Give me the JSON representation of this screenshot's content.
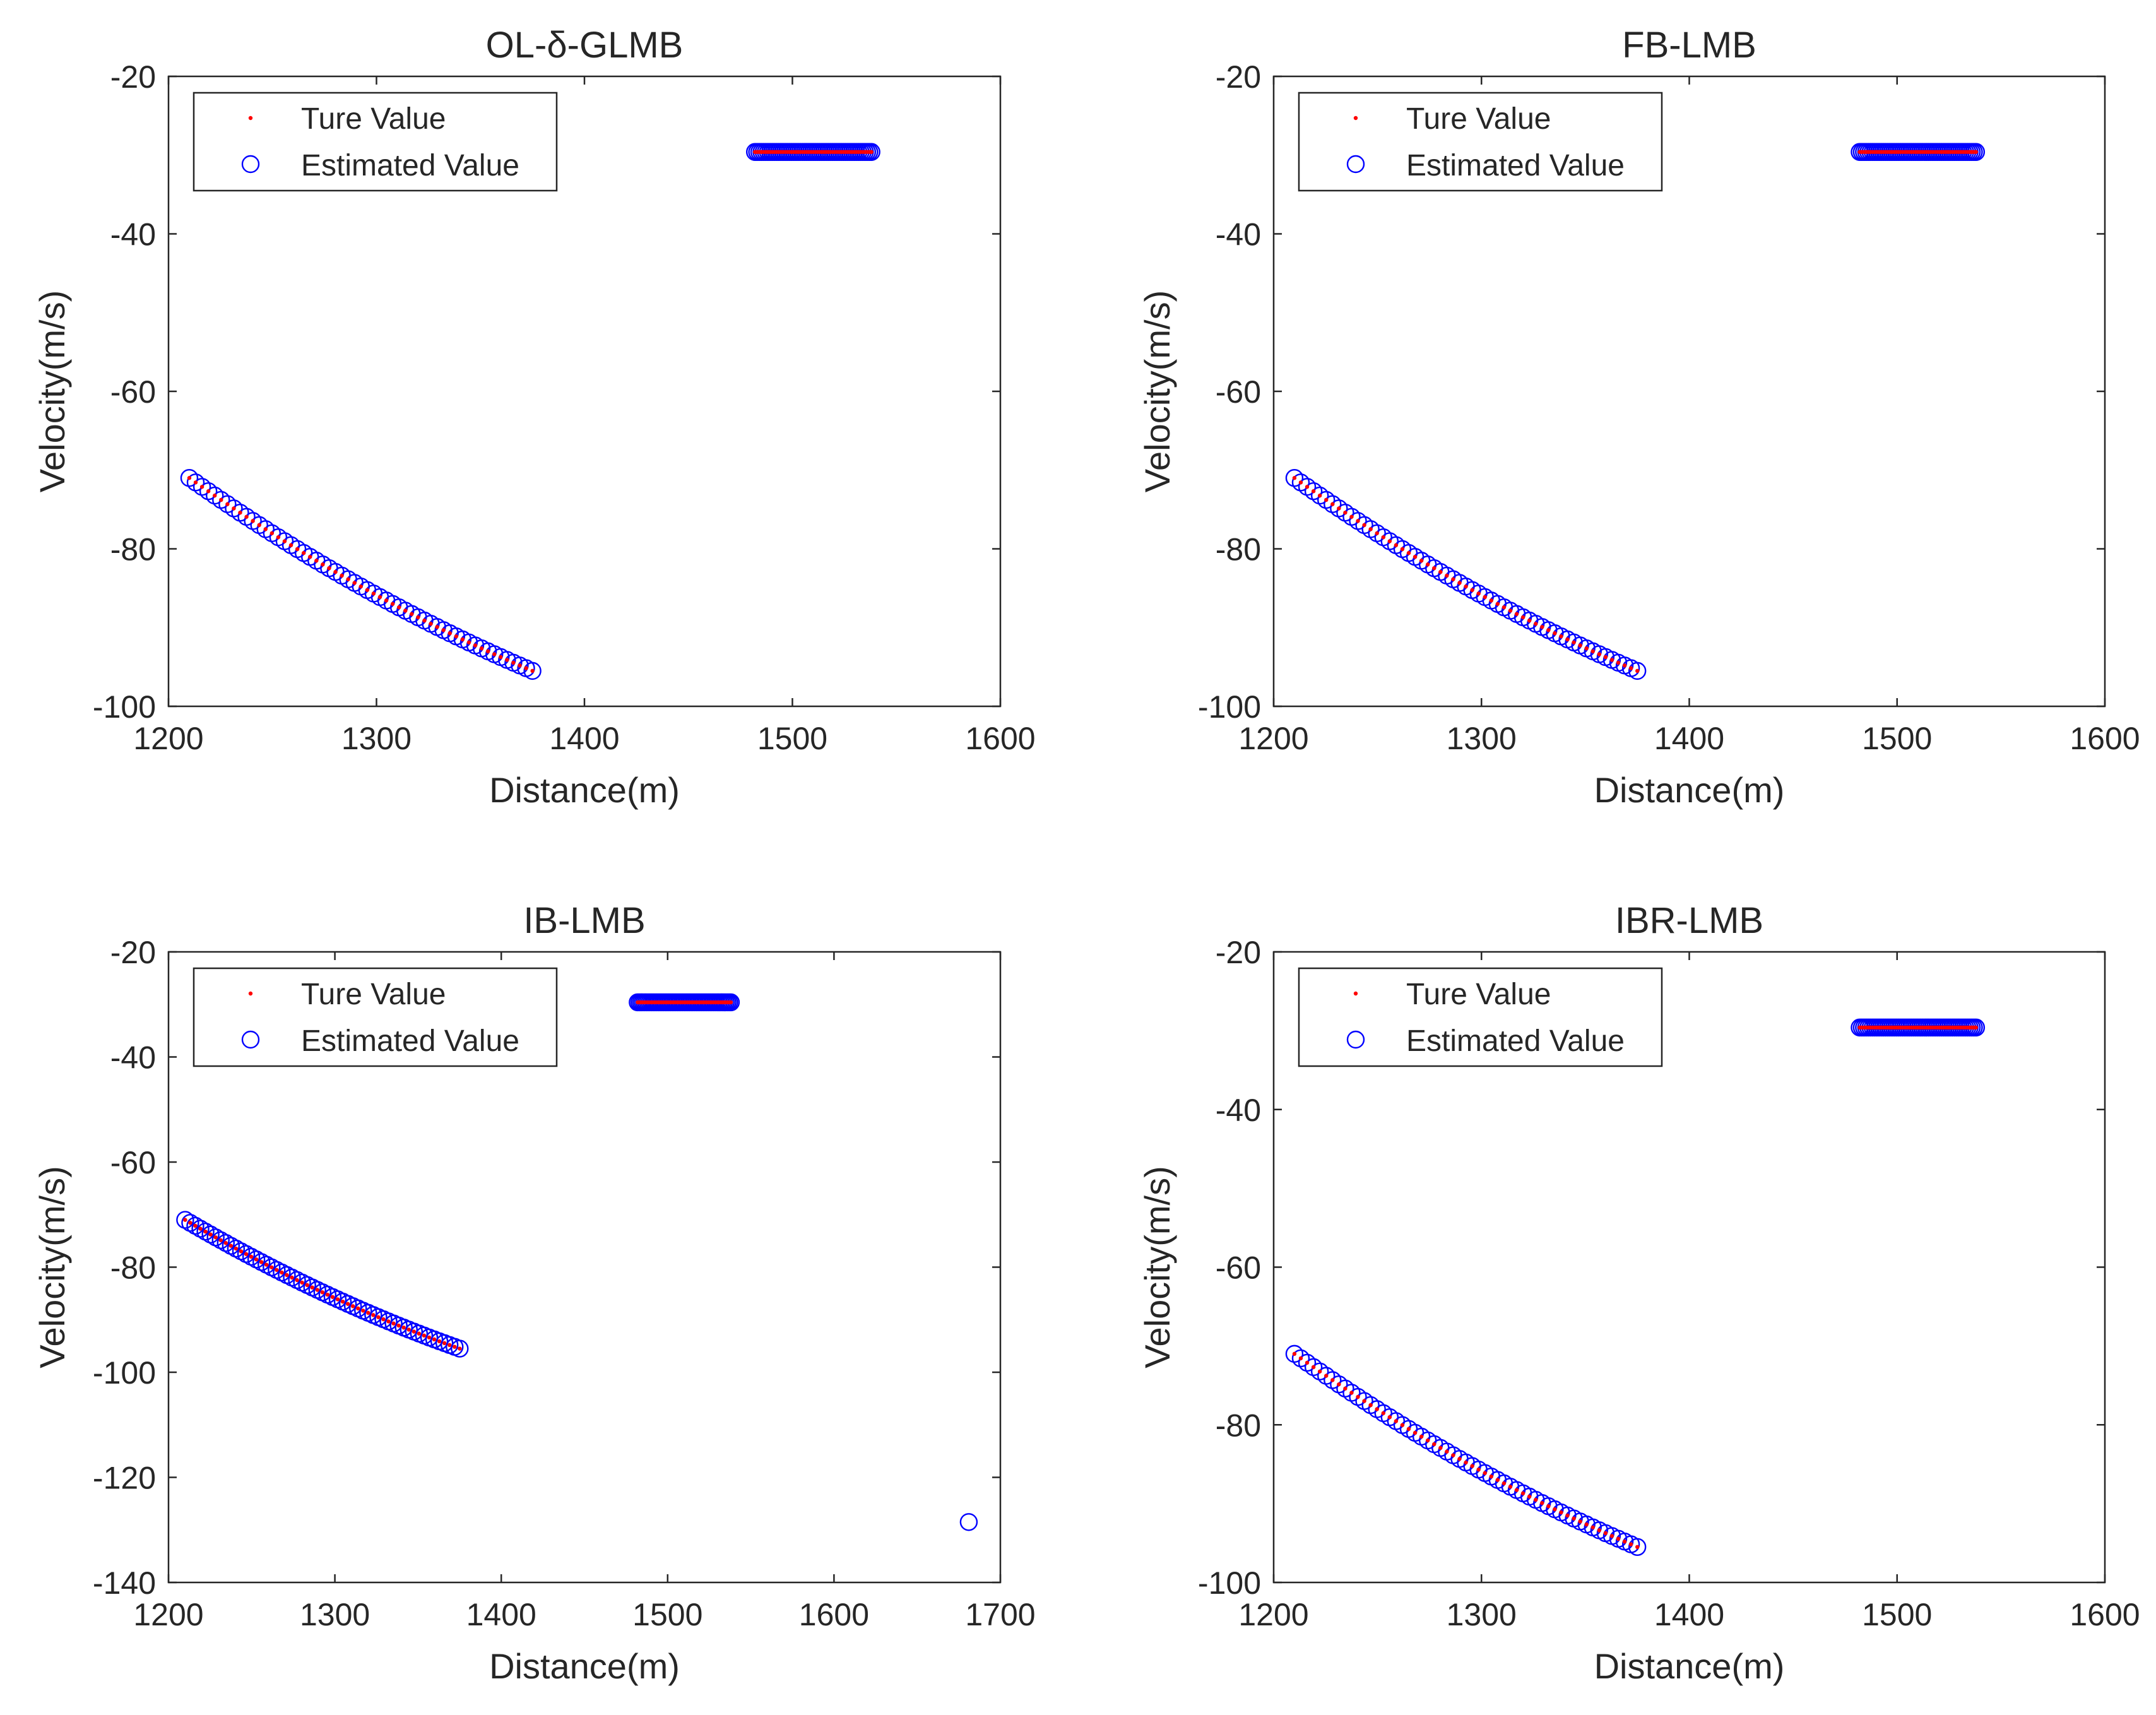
{
  "figure": {
    "colors": {
      "true_marker": "#ff0000",
      "estimated_marker": "#0000ff",
      "axes": "#262626",
      "background": "#ffffff"
    }
  },
  "chart_data": [
    {
      "type": "scatter",
      "title": "OL-δ-GLMB",
      "xlabel": "Distance(m)",
      "ylabel": "Velocity(m/s)",
      "xlim": [
        1200,
        1600
      ],
      "ylim": [
        -100,
        -20
      ],
      "xticks": [
        1200,
        1300,
        1400,
        1500,
        1600
      ],
      "yticks": [
        -20,
        -40,
        -60,
        -80,
        -100
      ],
      "legend": {
        "position": "top-left",
        "entries": [
          "Ture Value",
          "Estimated Value"
        ]
      },
      "series": [
        {
          "name": "Ture Value",
          "marker": "dot",
          "segments": [
            {
              "kind": "curve",
              "x_start": 1210,
              "x_end": 1375,
              "y_start": -71,
              "y_end": -95.5,
              "count": 55
            },
            {
              "kind": "flat",
              "x_start": 1482,
              "x_end": 1538,
              "y": -29.6,
              "count": 55
            }
          ]
        },
        {
          "name": "Estimated Value",
          "marker": "circle",
          "segments": [
            {
              "kind": "curve",
              "x_start": 1210,
              "x_end": 1375,
              "y_start": -71,
              "y_end": -95.5,
              "count": 55
            },
            {
              "kind": "flat",
              "x_start": 1482,
              "x_end": 1538,
              "y": -29.6,
              "count": 55
            }
          ]
        }
      ]
    },
    {
      "type": "scatter",
      "title": "FB-LMB",
      "xlabel": "Distance(m)",
      "ylabel": "Velocity(m/s)",
      "xlim": [
        1200,
        1600
      ],
      "ylim": [
        -100,
        -20
      ],
      "xticks": [
        1200,
        1300,
        1400,
        1500,
        1600
      ],
      "yticks": [
        -20,
        -40,
        -60,
        -80,
        -100
      ],
      "legend": {
        "position": "top-left",
        "entries": [
          "Ture Value",
          "Estimated Value"
        ]
      },
      "series": [
        {
          "name": "Ture Value",
          "marker": "dot",
          "segments": [
            {
              "kind": "curve",
              "x_start": 1210,
              "x_end": 1375,
              "y_start": -71,
              "y_end": -95.5,
              "count": 55
            },
            {
              "kind": "flat",
              "x_start": 1482,
              "x_end": 1538,
              "y": -29.6,
              "count": 55
            }
          ]
        },
        {
          "name": "Estimated Value",
          "marker": "circle",
          "segments": [
            {
              "kind": "curve",
              "x_start": 1210,
              "x_end": 1375,
              "y_start": -71,
              "y_end": -95.5,
              "count": 55
            },
            {
              "kind": "flat",
              "x_start": 1482,
              "x_end": 1538,
              "y": -29.6,
              "count": 55
            }
          ]
        }
      ]
    },
    {
      "type": "scatter",
      "title": "IB-LMB",
      "xlabel": "Distance(m)",
      "ylabel": "Velocity(m/s)",
      "xlim": [
        1200,
        1700
      ],
      "ylim": [
        -140,
        -20
      ],
      "xticks": [
        1200,
        1300,
        1400,
        1500,
        1600,
        1700
      ],
      "yticks": [
        -20,
        -40,
        -60,
        -80,
        -100,
        -120,
        -140
      ],
      "legend": {
        "position": "top-left",
        "entries": [
          "Ture Value",
          "Estimated Value"
        ]
      },
      "series": [
        {
          "name": "Ture Value",
          "marker": "dot",
          "segments": [
            {
              "kind": "curve",
              "x_start": 1210,
              "x_end": 1375,
              "y_start": -71,
              "y_end": -95.5,
              "count": 55
            },
            {
              "kind": "flat",
              "x_start": 1482,
              "x_end": 1538,
              "y": -29.6,
              "count": 55
            }
          ]
        },
        {
          "name": "Estimated Value",
          "marker": "circle",
          "segments": [
            {
              "kind": "curve",
              "x_start": 1210,
              "x_end": 1375,
              "y_start": -71,
              "y_end": -95.5,
              "count": 55
            },
            {
              "kind": "flat",
              "x_start": 1482,
              "x_end": 1538,
              "y": -29.6,
              "count": 55
            },
            {
              "kind": "points",
              "x": [
                1681
              ],
              "y": [
                -128.5
              ]
            }
          ]
        }
      ]
    },
    {
      "type": "scatter",
      "title": "IBR-LMB",
      "xlabel": "Distance(m)",
      "ylabel": "Velocity(m/s)",
      "xlim": [
        1200,
        1600
      ],
      "ylim": [
        -100,
        -20
      ],
      "xticks": [
        1200,
        1300,
        1400,
        1500,
        1600
      ],
      "yticks": [
        -20,
        -40,
        -60,
        -80,
        -100
      ],
      "legend": {
        "position": "top-left",
        "entries": [
          "Ture Value",
          "Estimated Value"
        ]
      },
      "series": [
        {
          "name": "Ture Value",
          "marker": "dot",
          "segments": [
            {
              "kind": "curve",
              "x_start": 1210,
              "x_end": 1375,
              "y_start": -71,
              "y_end": -95.5,
              "count": 55
            },
            {
              "kind": "flat",
              "x_start": 1482,
              "x_end": 1538,
              "y": -29.6,
              "count": 55
            }
          ]
        },
        {
          "name": "Estimated Value",
          "marker": "circle",
          "segments": [
            {
              "kind": "curve",
              "x_start": 1210,
              "x_end": 1375,
              "y_start": -71,
              "y_end": -95.5,
              "count": 55
            },
            {
              "kind": "flat",
              "x_start": 1482,
              "x_end": 1538,
              "y": -29.6,
              "count": 55
            }
          ]
        }
      ]
    }
  ]
}
